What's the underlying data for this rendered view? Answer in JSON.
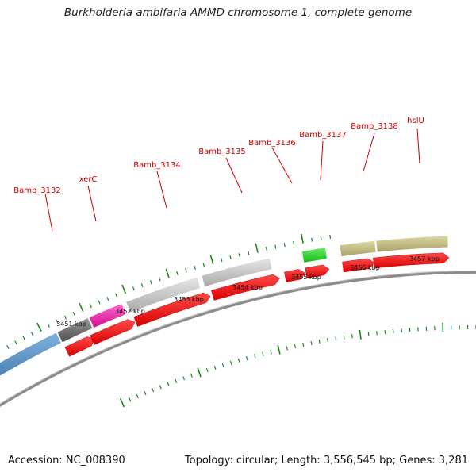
{
  "title": "Burkholderia ambifaria AMMD chromosome 1, complete genome",
  "footer": {
    "accession": "Accession: NC_008390",
    "summary": "Topology: circular; Length: 3,556,545 bp; Genes: 3,281"
  },
  "colors": {
    "cds": "#ff0000",
    "backbone": "#8c8c8c",
    "tick": "#1a8a1a",
    "label": "#cc0000"
  },
  "gene_labels": [
    "Bamb_3132",
    "xerC",
    "Bamb_3134",
    "Bamb_3135",
    "Bamb_3136",
    "Bamb_3137",
    "Bamb_3138",
    "hslU"
  ],
  "scale_labels": [
    "3451 kbp",
    "3452 kbp",
    "3453 kbp",
    "3454 kbp",
    "3455 kbp",
    "3456 kbp",
    "3457 kbp"
  ]
}
